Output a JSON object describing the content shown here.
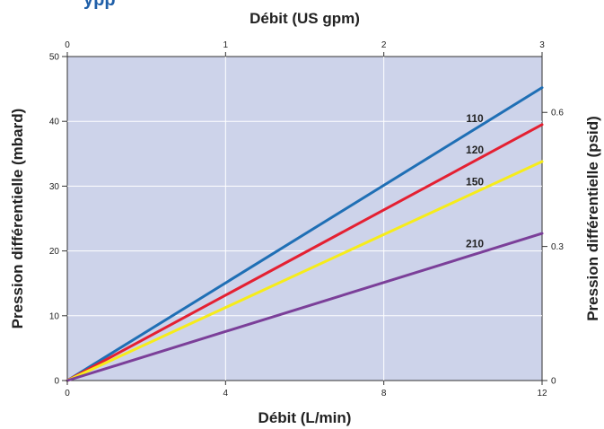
{
  "heading_fragment": "ypp",
  "chart_data": {
    "type": "line",
    "x_bottom": {
      "label": "Débit (L/min)",
      "range": [
        0,
        12
      ],
      "ticks": [
        0,
        4,
        8,
        12
      ]
    },
    "x_top": {
      "label": "Débit (US gpm)",
      "range": [
        0,
        3
      ],
      "ticks": [
        0,
        1,
        2,
        3
      ]
    },
    "y_left": {
      "label": "Pression différentielle (mbard)",
      "range": [
        0,
        50
      ],
      "ticks": [
        0,
        10,
        20,
        30,
        40,
        50
      ]
    },
    "y_right": {
      "label": "Pression différentielle (psid)",
      "range": [
        0,
        0.725
      ],
      "ticks": [
        0,
        0.3,
        0.6
      ]
    },
    "grid": true,
    "background_color": "#cdd3ea",
    "series": [
      {
        "name": "110",
        "color": "#1f6fb5",
        "x": [
          0,
          12
        ],
        "y": [
          0,
          45.2
        ]
      },
      {
        "name": "120",
        "color": "#e42032",
        "x": [
          0,
          12
        ],
        "y": [
          0,
          39.5
        ]
      },
      {
        "name": "150",
        "color": "#f6ec1a",
        "x": [
          0,
          12
        ],
        "y": [
          0,
          33.8
        ]
      },
      {
        "name": "210",
        "color": "#7b3f99",
        "x": [
          0,
          12
        ],
        "y": [
          0,
          22.7
        ]
      }
    ]
  }
}
